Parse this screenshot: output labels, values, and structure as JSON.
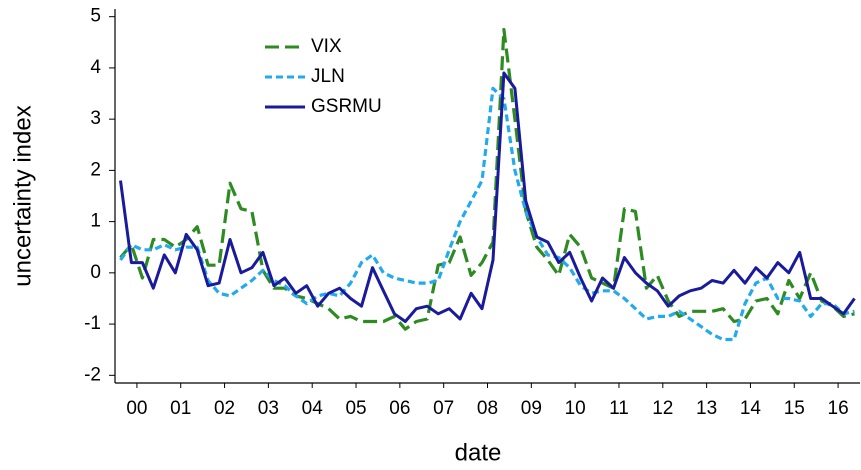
{
  "chart_data": {
    "type": "line",
    "x_label": "date",
    "y_label": "uncertainty index",
    "x": [
      0,
      0.25,
      0.5,
      0.75,
      1,
      1.25,
      1.5,
      1.75,
      2,
      2.25,
      2.5,
      2.75,
      3,
      3.25,
      3.5,
      3.75,
      4,
      4.25,
      4.5,
      4.75,
      5,
      5.25,
      5.5,
      5.75,
      6,
      6.25,
      6.5,
      6.75,
      7,
      7.25,
      7.5,
      7.75,
      8,
      8.25,
      8.5,
      8.75,
      9,
      9.25,
      9.5,
      9.75,
      10,
      10.25,
      10.5,
      10.75,
      11,
      11.25,
      11.5,
      11.75,
      12,
      12.25,
      12.5,
      12.75,
      13,
      13.25,
      13.5,
      13.75,
      14,
      14.25,
      14.5,
      14.75,
      15,
      15.25,
      15.5,
      15.75,
      16,
      16.25,
      16.5,
      16.75
    ],
    "xlim": [
      -0.125,
      16.875
    ],
    "xticks": [
      {
        "value": 0.375,
        "label": "00"
      },
      {
        "value": 1.375,
        "label": "01"
      },
      {
        "value": 2.375,
        "label": "02"
      },
      {
        "value": 3.375,
        "label": "03"
      },
      {
        "value": 4.375,
        "label": "04"
      },
      {
        "value": 5.375,
        "label": "05"
      },
      {
        "value": 6.375,
        "label": "06"
      },
      {
        "value": 7.375,
        "label": "07"
      },
      {
        "value": 8.375,
        "label": "08"
      },
      {
        "value": 9.375,
        "label": "09"
      },
      {
        "value": 10.375,
        "label": "10"
      },
      {
        "value": 11.375,
        "label": "11"
      },
      {
        "value": 12.375,
        "label": "12"
      },
      {
        "value": 13.375,
        "label": "13"
      },
      {
        "value": 14.375,
        "label": "14"
      },
      {
        "value": 15.375,
        "label": "15"
      },
      {
        "value": 16.375,
        "label": "16"
      }
    ],
    "ylim": [
      -2.15,
      5.15
    ],
    "yticks": [
      -2,
      -1,
      0,
      1,
      2,
      3,
      4,
      5
    ],
    "legend": "upper left",
    "series": [
      {
        "name": "VIX",
        "color": "#2e8b22",
        "style": "dashed",
        "values": [
          0.3,
          0.55,
          -0.1,
          0.65,
          0.65,
          0.5,
          0.65,
          0.9,
          0.15,
          0.15,
          1.75,
          1.25,
          1.2,
          0.05,
          -0.3,
          -0.3,
          -0.45,
          -0.5,
          -0.6,
          -0.7,
          -0.9,
          -0.85,
          -0.95,
          -0.95,
          -0.95,
          -0.85,
          -1.1,
          -0.95,
          -0.9,
          0.15,
          0.2,
          0.7,
          -0.05,
          0.2,
          0.6,
          4.75,
          3.0,
          1.2,
          0.5,
          0.25,
          -0.05,
          0.75,
          0.5,
          -0.1,
          -0.2,
          -0.3,
          1.25,
          1.2,
          -0.3,
          -0.05,
          -0.55,
          -0.85,
          -0.75,
          -0.75,
          -0.75,
          -0.7,
          -0.95,
          -0.9,
          -0.55,
          -0.5,
          -0.8,
          -0.15,
          -0.5,
          0.0,
          -0.55,
          -0.65,
          -0.85,
          -0.8
        ]
      },
      {
        "name": "JLN",
        "color": "#22aaee",
        "style": "dashed",
        "values": [
          0.25,
          0.55,
          0.45,
          0.45,
          0.55,
          0.45,
          0.5,
          0.5,
          -0.15,
          -0.4,
          -0.45,
          -0.3,
          -0.15,
          0.05,
          -0.15,
          -0.25,
          -0.45,
          -0.6,
          -0.45,
          -0.4,
          -0.45,
          -0.2,
          0.2,
          0.35,
          0.0,
          -0.1,
          -0.15,
          -0.2,
          -0.2,
          -0.15,
          0.45,
          1.0,
          1.4,
          1.8,
          3.6,
          3.4,
          2.0,
          1.2,
          0.7,
          0.35,
          0.3,
          0.1,
          -0.25,
          -0.4,
          -0.35,
          -0.35,
          -0.5,
          -0.7,
          -0.9,
          -0.85,
          -0.85,
          -0.75,
          -0.9,
          -1.05,
          -1.2,
          -1.3,
          -1.3,
          -0.6,
          -0.2,
          -0.1,
          -0.5,
          -0.5,
          -0.55,
          -0.85,
          -0.6,
          -0.6,
          -0.8,
          -0.75
        ]
      },
      {
        "name": "GSRMU",
        "color": "#1a1a9c",
        "style": "solid",
        "values": [
          1.8,
          0.2,
          0.2,
          -0.3,
          0.35,
          0.0,
          0.75,
          0.45,
          -0.25,
          -0.2,
          0.65,
          0.0,
          0.1,
          0.4,
          -0.25,
          -0.1,
          -0.4,
          -0.25,
          -0.65,
          -0.4,
          -0.3,
          -0.5,
          -0.65,
          0.1,
          -0.35,
          -0.8,
          -0.95,
          -0.7,
          -0.65,
          -0.8,
          -0.7,
          -0.9,
          -0.4,
          -0.7,
          0.25,
          3.9,
          3.6,
          1.4,
          0.7,
          0.6,
          0.2,
          0.4,
          -0.1,
          -0.55,
          -0.1,
          -0.3,
          0.3,
          0.0,
          -0.2,
          -0.35,
          -0.65,
          -0.45,
          -0.35,
          -0.3,
          -0.15,
          -0.2,
          0.05,
          -0.2,
          0.1,
          -0.1,
          0.2,
          0.0,
          0.4,
          -0.5,
          -0.5,
          -0.65,
          -0.8,
          -0.5
        ]
      }
    ]
  }
}
